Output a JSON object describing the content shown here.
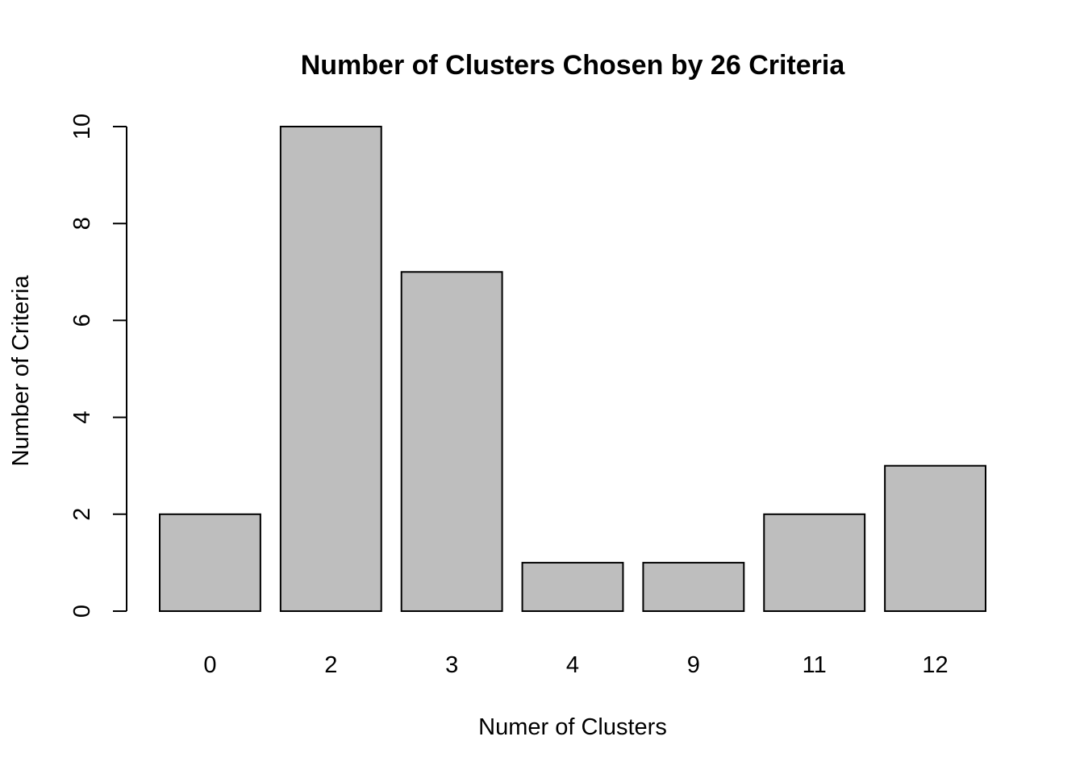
{
  "chart_data": {
    "type": "bar",
    "title": "Number of Clusters Chosen by 26 Criteria",
    "xlabel": "Numer of Clusters",
    "ylabel": "Number of Criteria",
    "categories": [
      "0",
      "2",
      "3",
      "4",
      "9",
      "11",
      "12"
    ],
    "values": [
      2,
      10,
      7,
      1,
      1,
      2,
      3
    ],
    "ylim": [
      0,
      10
    ],
    "yticks": [
      0,
      2,
      4,
      6,
      8,
      10
    ],
    "grid": false,
    "colors": {
      "bar_fill": "#bebebe",
      "bar_stroke": "#000000",
      "text": "#000000",
      "background": "#ffffff"
    }
  }
}
